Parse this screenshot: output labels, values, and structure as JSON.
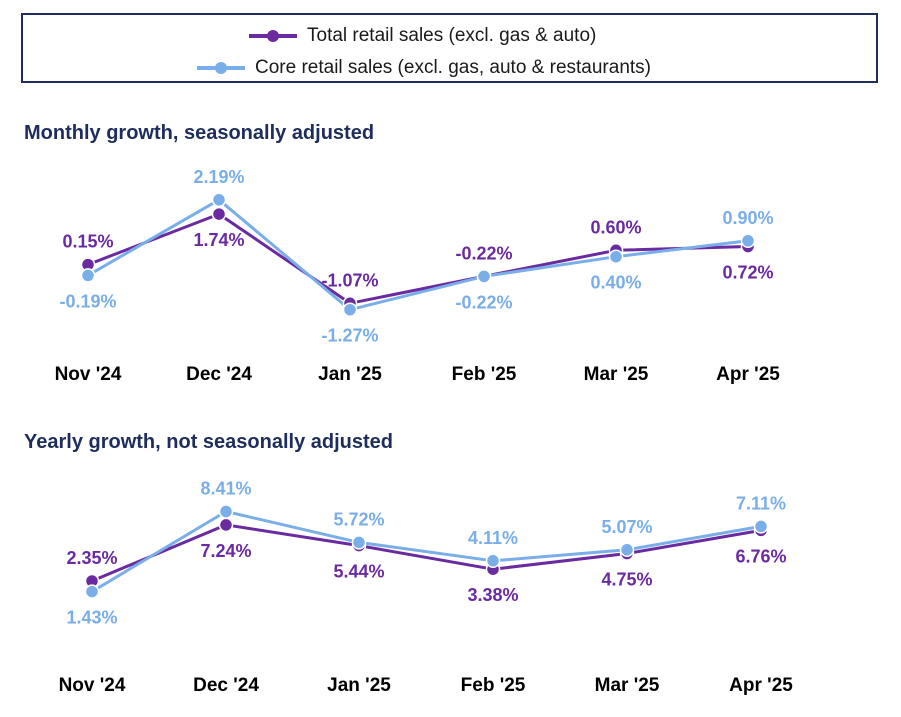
{
  "colors": {
    "total": "#6a2aa0",
    "core": "#79aee8",
    "title": "#1f2d5c",
    "border": "#1f2d5c"
  },
  "legend": {
    "total_label": "Total retail sales (excl. gas & auto)",
    "core_label": "Core retail sales (excl. gas, auto & restaurants)"
  },
  "chart_data": [
    {
      "type": "line",
      "title": "Monthly growth, seasonally adjusted",
      "categories": [
        "Nov '24",
        "Dec '24",
        "Jan '25",
        "Feb '25",
        "Mar '25",
        "Apr '25"
      ],
      "series": [
        {
          "name": "Total retail sales (excl. gas & auto)",
          "values": [
            0.15,
            1.74,
            -1.07,
            -0.22,
            0.6,
            0.72
          ],
          "labels": [
            "0.15%",
            "1.74%",
            "-1.07%",
            "-0.22%",
            "0.60%",
            "0.72%"
          ]
        },
        {
          "name": "Core retail sales (excl. gas, auto & restaurants)",
          "values": [
            -0.19,
            2.19,
            -1.27,
            -0.22,
            0.4,
            0.9
          ],
          "labels": [
            "-0.19%",
            "2.19%",
            "-1.27%",
            "-0.22%",
            "0.40%",
            "0.90%"
          ]
        }
      ],
      "ylim": [
        -1.5,
        2.5
      ],
      "grid": false,
      "xlabel": "",
      "ylabel": ""
    },
    {
      "type": "line",
      "title": "Yearly growth, not seasonally adjusted",
      "categories": [
        "Nov '24",
        "Dec '24",
        "Jan '25",
        "Feb '25",
        "Mar '25",
        "Apr '25"
      ],
      "series": [
        {
          "name": "Total retail sales (excl. gas & auto)",
          "values": [
            2.35,
            7.24,
            5.44,
            3.38,
            4.75,
            6.76
          ],
          "labels": [
            "2.35%",
            "7.24%",
            "5.44%",
            "3.38%",
            "4.75%",
            "6.76%"
          ]
        },
        {
          "name": "Core retail sales (excl. gas, auto & restaurants)",
          "values": [
            1.43,
            8.41,
            5.72,
            4.11,
            5.07,
            7.11
          ],
          "labels": [
            "1.43%",
            "8.41%",
            "5.72%",
            "4.11%",
            "5.07%",
            "7.11%"
          ]
        }
      ],
      "ylim": [
        0,
        9.5
      ],
      "grid": false,
      "xlabel": "",
      "ylabel": ""
    }
  ]
}
